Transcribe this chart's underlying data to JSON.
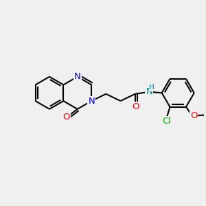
{
  "background_color": "#f0f0f0",
  "bond_color": "#000000",
  "atom_colors": {
    "N": "#0000ee",
    "O": "#ff0000",
    "NH": "#008080",
    "Cl": "#00aa00",
    "C": "#000000"
  },
  "font_size": 9.5,
  "fig_size": [
    3.0,
    3.0
  ],
  "dpi": 100
}
